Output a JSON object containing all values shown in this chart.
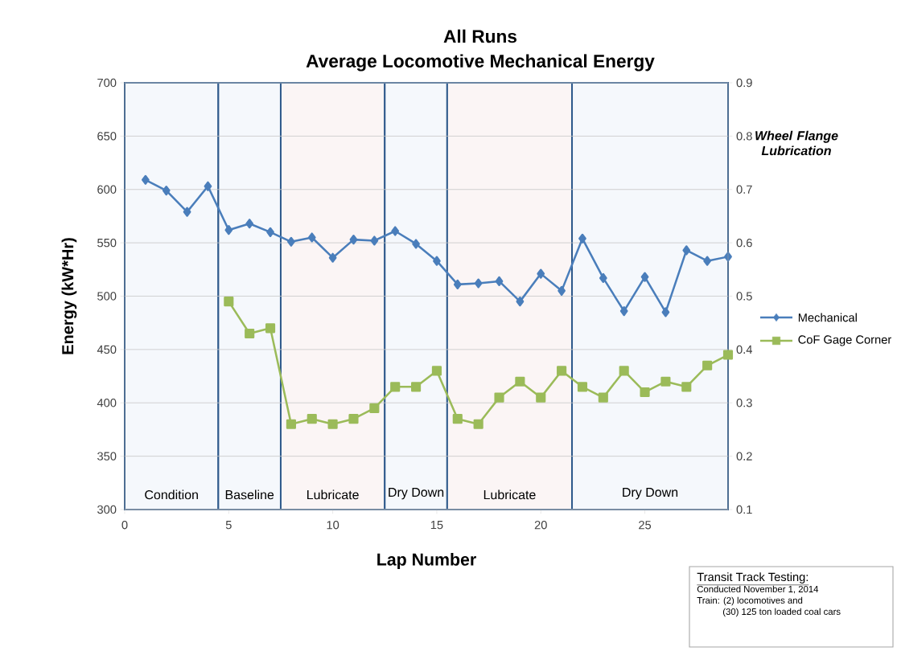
{
  "chart_data": {
    "type": "line",
    "title": "All Runs",
    "subtitle": "Average Locomotive Mechanical Energy",
    "xlabel": "Lap Number",
    "ylabel": "Energy (kW*Hr)",
    "x": [
      1,
      2,
      3,
      4,
      5,
      6,
      7,
      8,
      9,
      10,
      11,
      12,
      13,
      14,
      15,
      16,
      17,
      18,
      19,
      20,
      21,
      22,
      23,
      24,
      25,
      26,
      27,
      28,
      29
    ],
    "series": [
      {
        "name": "Mechanical",
        "color": "#4a7ebb",
        "marker": "diamond",
        "values": [
          609,
          599,
          579,
          603,
          562,
          568,
          560,
          551,
          555,
          536,
          553,
          552,
          561,
          549,
          533,
          511,
          512,
          514,
          495,
          521,
          505,
          554,
          517,
          486,
          518,
          485,
          543,
          533,
          537
        ]
      },
      {
        "name": "CoF Gage Corner",
        "color": "#9bbb59",
        "marker": "square",
        "axis": "y2",
        "x": [
          5,
          6,
          7,
          8,
          9,
          10,
          11,
          12,
          13,
          14,
          15,
          16,
          17,
          18,
          19,
          20,
          21,
          22,
          23,
          24,
          25,
          26,
          27,
          28,
          29
        ],
        "values": [
          0.49,
          0.43,
          0.44,
          0.26,
          0.27,
          0.26,
          0.27,
          0.29,
          0.33,
          0.33,
          0.36,
          0.27,
          0.26,
          0.31,
          0.34,
          0.31,
          0.36,
          0.33,
          0.31,
          0.36,
          0.32,
          0.34,
          0.33,
          0.37,
          0.39
        ]
      }
    ],
    "xlim": [
      0,
      29
    ],
    "xticks": [
      0,
      5,
      10,
      15,
      20,
      25
    ],
    "ylim": [
      300,
      700
    ],
    "yticks": [
      300,
      350,
      400,
      450,
      500,
      550,
      600,
      650,
      700
    ],
    "y2lim": [
      0.1,
      0.9
    ],
    "y2ticks": [
      0.1,
      0.2,
      0.3,
      0.4,
      0.5,
      0.6,
      0.7,
      0.8,
      0.9
    ],
    "bands": [
      {
        "axis": "x",
        "from": 0,
        "to": 4.5,
        "label": "Condition",
        "color": "#f5f8fc"
      },
      {
        "axis": "x",
        "from": 4.5,
        "to": 7.5,
        "label": "Baseline",
        "color": "#f5f8fc"
      },
      {
        "axis": "x",
        "from": 7.5,
        "to": 12.5,
        "label": "Lubricate",
        "color": "#fbf5f5"
      },
      {
        "axis": "x",
        "from": 12.5,
        "to": 15.5,
        "label": "Dry Down",
        "color": "#f5f8fc"
      },
      {
        "axis": "x",
        "from": 15.5,
        "to": 21.5,
        "label": "Lubricate",
        "color": "#fbf5f5"
      },
      {
        "axis": "x",
        "from": 21.5,
        "to": 29,
        "label": "Dry Down",
        "color": "#f5f8fc"
      }
    ],
    "annotations": [
      "Wheel Flange Lubrication",
      "Transit Track Testing:",
      "Conducted November 1, 2014",
      "Train: (2) locomotives and",
      "(30) 125 ton loaded coal cars"
    ],
    "grid": "y",
    "legend": "right",
    "line_style": "solid"
  }
}
